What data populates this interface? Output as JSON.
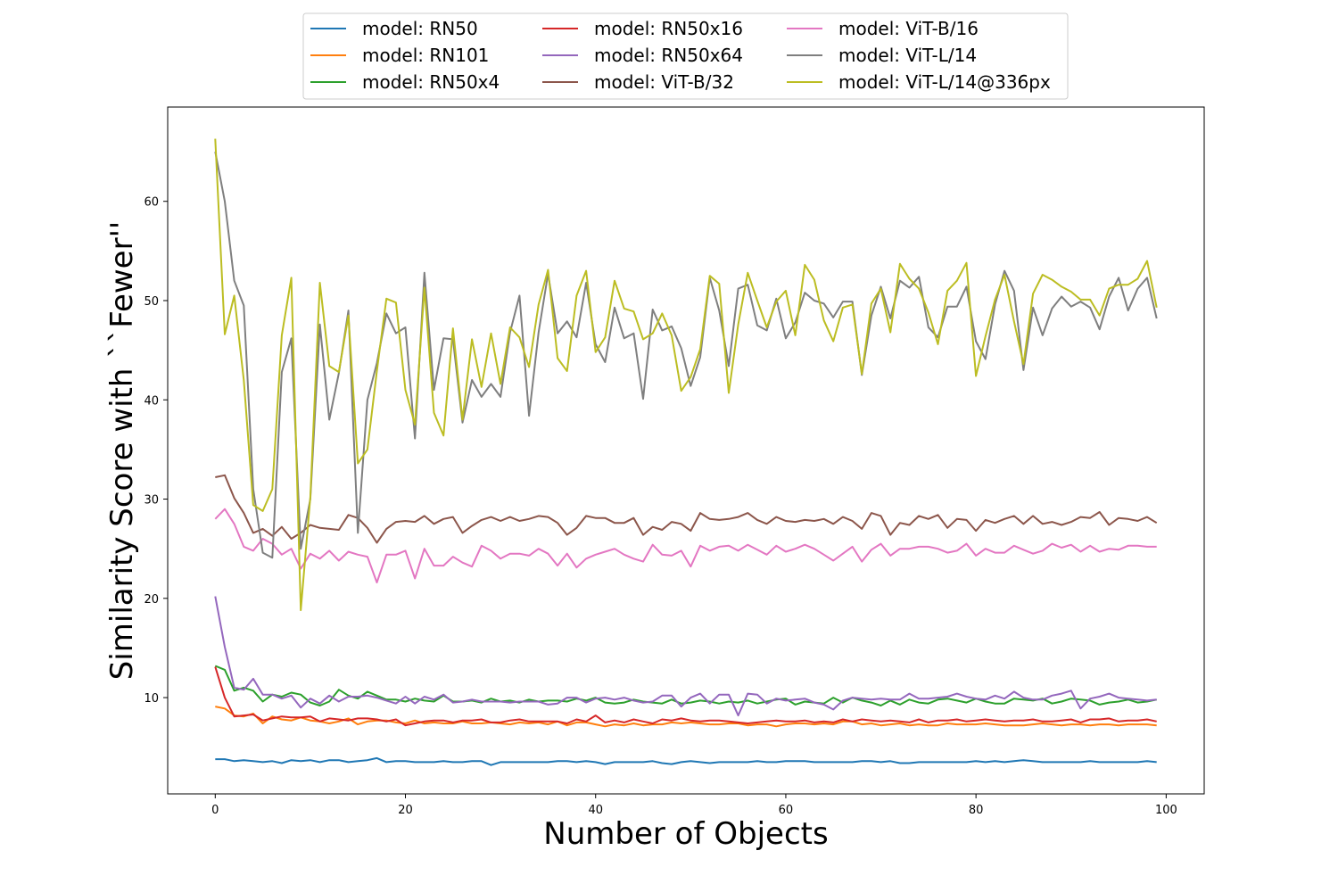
{
  "chart_data": {
    "type": "line",
    "title": "",
    "xlabel": "Number of Objects",
    "ylabel": "Similarity Score with ``Fewer''",
    "xlim": [
      -5,
      104
    ],
    "ylim": [
      0.3,
      69.5
    ],
    "x_ticks": [
      0,
      20,
      40,
      60,
      80,
      100
    ],
    "y_ticks": [
      10,
      20,
      30,
      40,
      50,
      60
    ],
    "grid": false,
    "legend_position": "top-center",
    "legend_columns": 3,
    "series": [
      {
        "name": "model: RN50",
        "color": "#1f77b4",
        "values": [
          3.8,
          3.8,
          3.6,
          3.7,
          3.6,
          3.5,
          3.6,
          3.4,
          3.7,
          3.6,
          3.7,
          3.5,
          3.7,
          3.7,
          3.5,
          3.6,
          3.7,
          3.9,
          3.5,
          3.6,
          3.6,
          3.5,
          3.5,
          3.5,
          3.6,
          3.5,
          3.5,
          3.6,
          3.6,
          3.2,
          3.5,
          3.5,
          3.5,
          3.5,
          3.5,
          3.5,
          3.6,
          3.6,
          3.5,
          3.6,
          3.5,
          3.3,
          3.5,
          3.5,
          3.5,
          3.5,
          3.6,
          3.4,
          3.3,
          3.5,
          3.6,
          3.5,
          3.4,
          3.5,
          3.5,
          3.5,
          3.5,
          3.6,
          3.5,
          3.5,
          3.6,
          3.6,
          3.6,
          3.5,
          3.5,
          3.5,
          3.5,
          3.5,
          3.6,
          3.6,
          3.5,
          3.6,
          3.4,
          3.4,
          3.5,
          3.5,
          3.5,
          3.5,
          3.5,
          3.5,
          3.6,
          3.5,
          3.6,
          3.5,
          3.6,
          3.7,
          3.6,
          3.5,
          3.5,
          3.5,
          3.5,
          3.5,
          3.6,
          3.5,
          3.5,
          3.5,
          3.5,
          3.5,
          3.6,
          3.5
        ]
      },
      {
        "name": "model: RN101",
        "color": "#ff7f0e",
        "values": [
          9.1,
          8.9,
          8.2,
          8.1,
          8.4,
          7.4,
          8.1,
          7.8,
          7.7,
          8.0,
          7.7,
          7.6,
          7.4,
          7.6,
          7.9,
          7.3,
          7.6,
          7.7,
          7.7,
          7.5,
          7.4,
          7.7,
          7.4,
          7.5,
          7.4,
          7.4,
          7.6,
          7.4,
          7.4,
          7.5,
          7.4,
          7.3,
          7.5,
          7.4,
          7.5,
          7.3,
          7.6,
          7.2,
          7.5,
          7.5,
          7.3,
          7.1,
          7.3,
          7.2,
          7.4,
          7.2,
          7.3,
          7.3,
          7.5,
          7.4,
          7.5,
          7.4,
          7.3,
          7.3,
          7.4,
          7.4,
          7.2,
          7.3,
          7.3,
          7.1,
          7.3,
          7.4,
          7.4,
          7.3,
          7.4,
          7.3,
          7.6,
          7.6,
          7.3,
          7.4,
          7.2,
          7.3,
          7.4,
          7.2,
          7.3,
          7.2,
          7.2,
          7.4,
          7.3,
          7.3,
          7.3,
          7.4,
          7.3,
          7.2,
          7.2,
          7.2,
          7.3,
          7.4,
          7.3,
          7.2,
          7.3,
          7.3,
          7.2,
          7.3,
          7.3,
          7.2,
          7.3,
          7.3,
          7.3,
          7.2
        ]
      },
      {
        "name": "model: RN50x4",
        "color": "#2ca02c",
        "values": [
          13.2,
          12.8,
          10.7,
          11.0,
          10.7,
          9.6,
          10.3,
          10.1,
          10.5,
          10.3,
          9.5,
          9.2,
          9.6,
          10.8,
          10.2,
          9.9,
          10.6,
          10.2,
          9.8,
          9.8,
          9.6,
          9.9,
          9.7,
          9.6,
          10.2,
          9.6,
          9.6,
          9.7,
          9.5,
          9.9,
          9.6,
          9.7,
          9.5,
          9.8,
          9.6,
          9.7,
          9.7,
          9.6,
          9.9,
          9.7,
          10.0,
          9.5,
          9.4,
          9.5,
          9.8,
          9.6,
          9.5,
          9.4,
          9.8,
          9.4,
          9.5,
          9.7,
          9.6,
          9.4,
          9.6,
          9.5,
          9.7,
          9.4,
          9.6,
          9.8,
          9.9,
          9.3,
          9.6,
          9.5,
          9.4,
          10.0,
          9.5,
          10.0,
          9.7,
          9.5,
          9.2,
          9.7,
          9.3,
          9.8,
          9.5,
          9.4,
          9.8,
          9.9,
          9.7,
          9.5,
          9.9,
          9.6,
          9.4,
          9.4,
          9.9,
          9.8,
          9.7,
          9.9,
          9.4,
          9.6,
          9.9,
          9.8,
          9.7,
          9.3,
          9.5,
          9.6,
          9.8,
          9.5,
          9.6,
          9.8
        ]
      },
      {
        "name": "model: RN50x16",
        "color": "#d62728",
        "values": [
          13.1,
          10.0,
          8.1,
          8.2,
          8.3,
          7.7,
          7.9,
          8.1,
          8.0,
          8.0,
          8.1,
          7.6,
          7.9,
          7.8,
          7.7,
          7.9,
          7.9,
          7.8,
          7.6,
          7.8,
          7.2,
          7.4,
          7.6,
          7.7,
          7.7,
          7.5,
          7.7,
          7.7,
          7.8,
          7.5,
          7.5,
          7.7,
          7.8,
          7.6,
          7.6,
          7.6,
          7.6,
          7.4,
          7.8,
          7.6,
          8.2,
          7.5,
          7.7,
          7.5,
          7.8,
          7.6,
          7.4,
          7.8,
          7.7,
          7.9,
          7.7,
          7.6,
          7.7,
          7.7,
          7.6,
          7.5,
          7.4,
          7.5,
          7.6,
          7.7,
          7.6,
          7.6,
          7.7,
          7.5,
          7.6,
          7.5,
          7.8,
          7.6,
          7.8,
          7.7,
          7.6,
          7.7,
          7.6,
          7.5,
          7.8,
          7.5,
          7.7,
          7.7,
          7.8,
          7.6,
          7.7,
          7.8,
          7.7,
          7.6,
          7.7,
          7.7,
          7.8,
          7.6,
          7.6,
          7.7,
          7.8,
          7.5,
          7.8,
          7.8,
          7.9,
          7.6,
          7.7,
          7.7,
          7.8,
          7.6
        ]
      },
      {
        "name": "model: RN50x64",
        "color": "#9467bd",
        "values": [
          20.2,
          15.1,
          11.0,
          10.8,
          11.9,
          10.3,
          10.3,
          9.9,
          10.2,
          9.0,
          9.9,
          9.4,
          10.2,
          9.6,
          10.1,
          10.1,
          10.2,
          10.0,
          9.7,
          9.4,
          10.1,
          9.4,
          10.1,
          9.8,
          10.3,
          9.5,
          9.6,
          9.8,
          9.6,
          9.6,
          9.6,
          9.5,
          9.6,
          9.6,
          9.6,
          9.3,
          9.4,
          10.0,
          10.0,
          9.5,
          9.9,
          10.0,
          9.8,
          10.0,
          9.7,
          9.5,
          9.6,
          10.2,
          10.2,
          9.1,
          10.0,
          10.4,
          9.4,
          10.3,
          10.3,
          8.2,
          10.4,
          10.3,
          9.4,
          9.9,
          9.7,
          9.8,
          9.9,
          9.5,
          9.3,
          8.8,
          9.7,
          10.0,
          9.9,
          9.8,
          9.9,
          9.8,
          9.8,
          10.4,
          9.9,
          9.9,
          10.0,
          10.1,
          10.4,
          10.1,
          9.9,
          9.8,
          10.2,
          9.9,
          10.6,
          10.0,
          9.8,
          9.8,
          10.2,
          10.4,
          10.7,
          8.9,
          9.9,
          10.1,
          10.4,
          10.0,
          9.9,
          9.8,
          9.7,
          9.8
        ]
      },
      {
        "name": "model: ViT-B/32",
        "color": "#8c564b",
        "values": [
          32.2,
          32.4,
          30.1,
          28.6,
          26.6,
          27.0,
          26.3,
          27.2,
          26.0,
          26.6,
          27.4,
          27.1,
          27.0,
          26.9,
          28.4,
          28.1,
          27.1,
          25.6,
          27.0,
          27.7,
          27.8,
          27.7,
          28.3,
          27.5,
          28.0,
          28.2,
          26.6,
          27.3,
          27.9,
          28.2,
          27.8,
          28.2,
          27.8,
          28.0,
          28.3,
          28.2,
          27.6,
          26.4,
          27.1,
          28.3,
          28.1,
          28.1,
          27.6,
          27.6,
          28.1,
          26.4,
          27.2,
          26.9,
          27.7,
          27.5,
          26.8,
          28.6,
          28.0,
          27.9,
          28.0,
          28.2,
          28.6,
          27.9,
          27.5,
          28.2,
          27.8,
          27.7,
          27.9,
          27.8,
          28.0,
          27.5,
          28.2,
          27.8,
          27.0,
          28.6,
          28.3,
          26.4,
          27.6,
          27.4,
          28.3,
          28.0,
          28.4,
          27.1,
          28.0,
          27.9,
          26.8,
          27.9,
          27.6,
          28.0,
          28.3,
          27.5,
          28.3,
          27.5,
          27.7,
          27.4,
          27.7,
          28.2,
          28.1,
          28.7,
          27.4,
          28.1,
          28.0,
          27.8,
          28.2,
          27.6
        ]
      },
      {
        "name": "model: ViT-B/16",
        "color": "#e377c2",
        "values": [
          28.0,
          29.0,
          27.5,
          25.2,
          24.8,
          26.0,
          25.5,
          24.4,
          25.0,
          23.0,
          24.5,
          24.0,
          24.8,
          23.8,
          24.7,
          24.4,
          24.2,
          21.6,
          24.4,
          24.4,
          24.8,
          22.0,
          25.0,
          23.3,
          23.3,
          24.2,
          23.6,
          23.2,
          25.3,
          24.8,
          24.0,
          24.5,
          24.5,
          24.3,
          25.0,
          24.5,
          23.3,
          24.5,
          23.1,
          24.0,
          24.4,
          24.7,
          25.0,
          24.4,
          24.0,
          23.7,
          25.4,
          24.4,
          24.3,
          24.8,
          23.2,
          25.3,
          24.8,
          25.2,
          25.3,
          24.8,
          25.4,
          24.9,
          24.4,
          25.3,
          24.7,
          25.0,
          25.4,
          25.0,
          24.4,
          23.8,
          24.5,
          25.2,
          23.7,
          24.9,
          25.5,
          24.3,
          25.0,
          25.0,
          25.2,
          25.2,
          25.0,
          24.6,
          24.8,
          25.5,
          24.3,
          25.0,
          24.6,
          24.6,
          25.3,
          24.9,
          24.5,
          24.8,
          25.5,
          25.1,
          25.4,
          24.7,
          25.3,
          24.7,
          25.0,
          24.9,
          25.3,
          25.3,
          25.2,
          25.2
        ]
      },
      {
        "name": "model: ViT-L/14",
        "color": "#7f7f7f",
        "values": [
          65.0,
          60.0,
          52.0,
          49.5,
          31.0,
          24.6,
          24.1,
          42.8,
          46.2,
          25.0,
          30.0,
          47.6,
          38.0,
          42.7,
          49.0,
          26.6,
          40.0,
          43.7,
          48.7,
          46.7,
          47.3,
          36.1,
          52.8,
          41.0,
          46.2,
          46.1,
          37.7,
          42.0,
          40.3,
          41.6,
          40.3,
          46.8,
          50.5,
          38.4,
          46.8,
          52.7,
          46.7,
          47.9,
          46.3,
          51.8,
          45.6,
          43.8,
          49.3,
          46.2,
          46.7,
          40.1,
          49.1,
          47.0,
          47.4,
          45.2,
          41.4,
          44.3,
          52.3,
          49.0,
          43.4,
          51.2,
          51.6,
          47.5,
          47.0,
          50.2,
          46.2,
          47.8,
          50.8,
          50.0,
          49.7,
          48.3,
          49.9,
          49.9,
          42.5,
          48.5,
          51.4,
          48.2,
          52.0,
          51.3,
          52.4,
          47.3,
          46.3,
          49.4,
          49.4,
          51.4,
          45.9,
          44.1,
          49.6,
          53.0,
          51.0,
          43.0,
          49.3,
          46.5,
          49.2,
          50.4,
          49.4,
          49.9,
          49.3,
          47.1,
          50.4,
          52.3,
          49.0,
          51.2,
          52.3,
          48.2
        ]
      },
      {
        "name": "model: ViT-L/14@336px",
        "color": "#bcbd22",
        "values": [
          66.3,
          46.6,
          50.5,
          42.0,
          29.4,
          28.8,
          31.0,
          46.5,
          52.3,
          18.8,
          30.2,
          51.8,
          43.4,
          42.8,
          48.5,
          33.6,
          35.0,
          42.9,
          50.2,
          49.8,
          41.0,
          37.5,
          51.3,
          38.7,
          36.4,
          47.2,
          38.0,
          46.1,
          41.3,
          46.7,
          41.6,
          47.3,
          46.3,
          43.3,
          49.6,
          53.1,
          44.2,
          42.9,
          50.5,
          53.0,
          44.8,
          46.3,
          52.0,
          49.2,
          48.9,
          46.1,
          46.7,
          48.7,
          46.5,
          40.9,
          42.3,
          45.1,
          52.5,
          51.7,
          40.7,
          47.6,
          52.8,
          50.0,
          47.3,
          49.9,
          51.0,
          46.5,
          53.6,
          52.1,
          48.0,
          45.9,
          49.3,
          49.6,
          42.6,
          49.7,
          51.2,
          46.8,
          53.7,
          52.2,
          51.2,
          48.8,
          45.6,
          51.0,
          52.0,
          53.8,
          42.4,
          46.4,
          50.1,
          52.6,
          47.9,
          43.6,
          50.7,
          52.6,
          52.1,
          51.4,
          50.9,
          50.1,
          50.1,
          48.5,
          51.2,
          51.6,
          51.6,
          52.2,
          54.0,
          49.3
        ]
      }
    ]
  }
}
